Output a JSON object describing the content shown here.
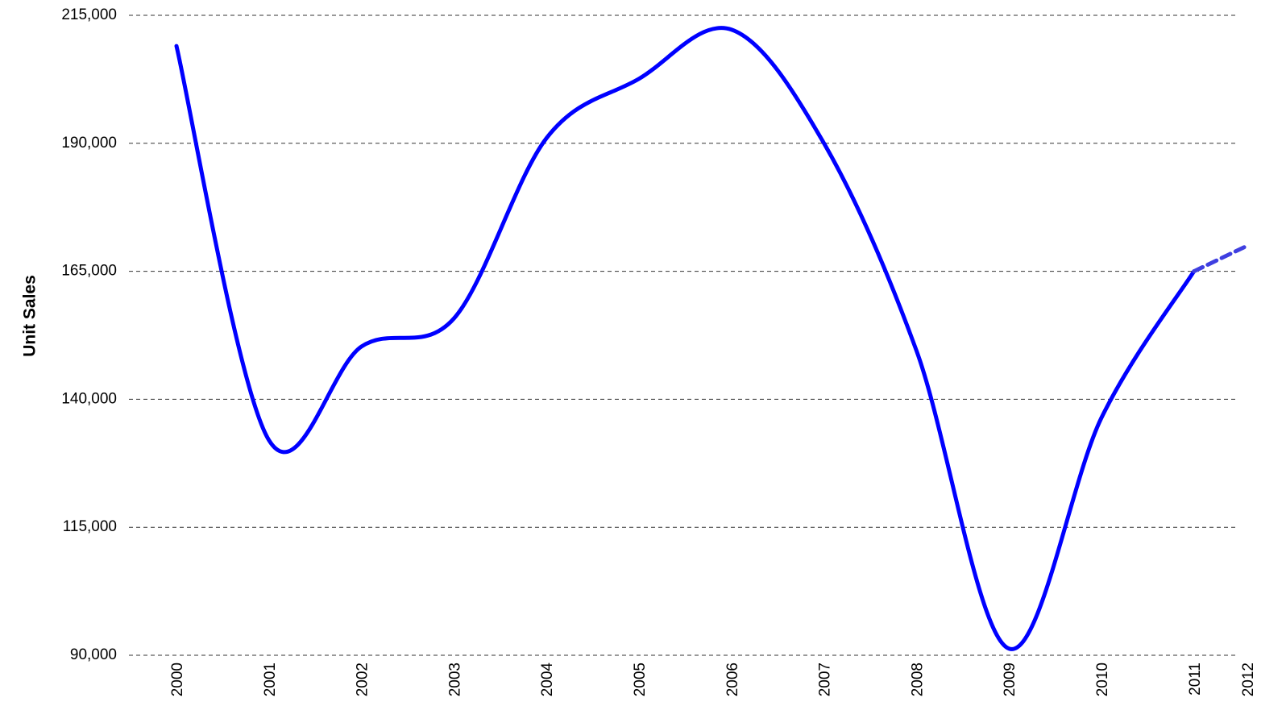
{
  "chart_data": {
    "type": "line",
    "y_label": "Unit Sales",
    "categories": [
      "2000",
      "2001",
      "2002",
      "2003",
      "2004",
      "2005",
      "2006",
      "2007",
      "2008",
      "2009",
      "2010",
      "2011",
      "2012"
    ],
    "series": [
      {
        "color": "#0000ff",
        "values": [
          209000,
          132000,
          150300,
          155800,
          191000,
          202600,
          212200,
          190000,
          149500,
          91300,
          136400,
          165000,
          null
        ]
      },
      {
        "color": "#3f3fe0",
        "dashed": true,
        "values": [
          null,
          null,
          null,
          null,
          null,
          null,
          null,
          null,
          null,
          null,
          null,
          165000,
          170000
        ]
      }
    ],
    "ylim": [
      90000,
      215000
    ],
    "yticks": [
      {
        "value": 90000,
        "label": "90,000"
      },
      {
        "value": 115000,
        "label": "115,000"
      },
      {
        "value": 140000,
        "label": "140,000"
      },
      {
        "value": 165000,
        "label": "165,000"
      },
      {
        "value": 190000,
        "label": "190,000"
      },
      {
        "value": 215000,
        "label": "215,000"
      }
    ],
    "grid": true
  }
}
